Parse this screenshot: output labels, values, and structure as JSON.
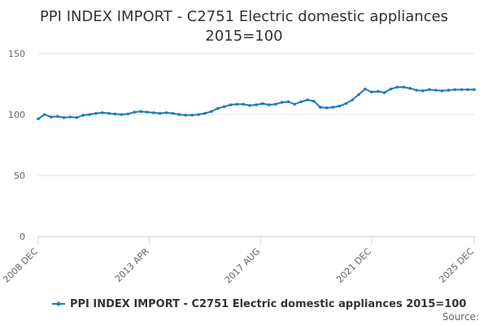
{
  "chart_data": {
    "type": "line",
    "title_lines": [
      "PPI INDEX IMPORT - C2751 Electric domestic appliances",
      "2015=100"
    ],
    "xlabel": "",
    "ylabel": "",
    "ylim": [
      0,
      150
    ],
    "yticks": [
      "0",
      "50",
      "100",
      "150"
    ],
    "xticks": [
      "2008 DEC",
      "2013 APR",
      "2017 AUG",
      "2021 DEC",
      "2025 DEC"
    ],
    "grid": true,
    "legend_position": "bottom",
    "series": [
      {
        "name": "PPI INDEX IMPORT - C2751 Electric domestic appliances 2015=100",
        "color": "#1f7ab7",
        "x": [
          "2008 DEC",
          "2009 MAR",
          "2009 JUN",
          "2009 SEP",
          "2009 DEC",
          "2010 MAR",
          "2010 JUN",
          "2010 SEP",
          "2010 DEC",
          "2011 MAR",
          "2011 JUN",
          "2011 SEP",
          "2011 DEC",
          "2012 MAR",
          "2012 JUN",
          "2012 SEP",
          "2012 DEC",
          "2013 MAR",
          "2013 JUN",
          "2013 SEP",
          "2013 DEC",
          "2014 MAR",
          "2014 JUN",
          "2014 SEP",
          "2014 DEC",
          "2015 MAR",
          "2015 JUN",
          "2015 SEP",
          "2015 DEC",
          "2016 MAR",
          "2016 JUN",
          "2016 SEP",
          "2016 DEC",
          "2017 MAR",
          "2017 JUN",
          "2017 SEP",
          "2017 DEC",
          "2018 MAR",
          "2018 JUN",
          "2018 SEP",
          "2018 DEC",
          "2019 MAR",
          "2019 JUN",
          "2019 SEP",
          "2019 DEC",
          "2020 MAR",
          "2020 JUN",
          "2020 SEP",
          "2020 DEC",
          "2021 MAR",
          "2021 JUN",
          "2021 SEP",
          "2021 DEC",
          "2022 MAR",
          "2022 JUN",
          "2022 SEP",
          "2022 DEC",
          "2023 MAR",
          "2023 JUN",
          "2023 SEP",
          "2023 DEC",
          "2024 MAR",
          "2024 JUN",
          "2024 SEP",
          "2024 DEC",
          "2025 MAR",
          "2025 JUN",
          "2025 SEP",
          "2025 DEC"
        ],
        "values": [
          96.5,
          100,
          98,
          98.5,
          97.5,
          98,
          97.5,
          99.5,
          100,
          101,
          101.5,
          101,
          100.5,
          100,
          100.5,
          102,
          102.5,
          102,
          101.5,
          101,
          101.5,
          101,
          100,
          99.5,
          99.5,
          100,
          101,
          102.5,
          105,
          106.5,
          108,
          108.5,
          108.5,
          107.5,
          108,
          109,
          108,
          108.5,
          110,
          110.5,
          108.5,
          110.5,
          112,
          111,
          106,
          105.5,
          106,
          107,
          109,
          112,
          116.5,
          121,
          118.5,
          119,
          118,
          121,
          122.5,
          122.5,
          121.5,
          120,
          119.5,
          120.5,
          120,
          119.5,
          120,
          120.5,
          120.5,
          120.5,
          120.5
        ]
      }
    ]
  },
  "source_label": "Source:"
}
